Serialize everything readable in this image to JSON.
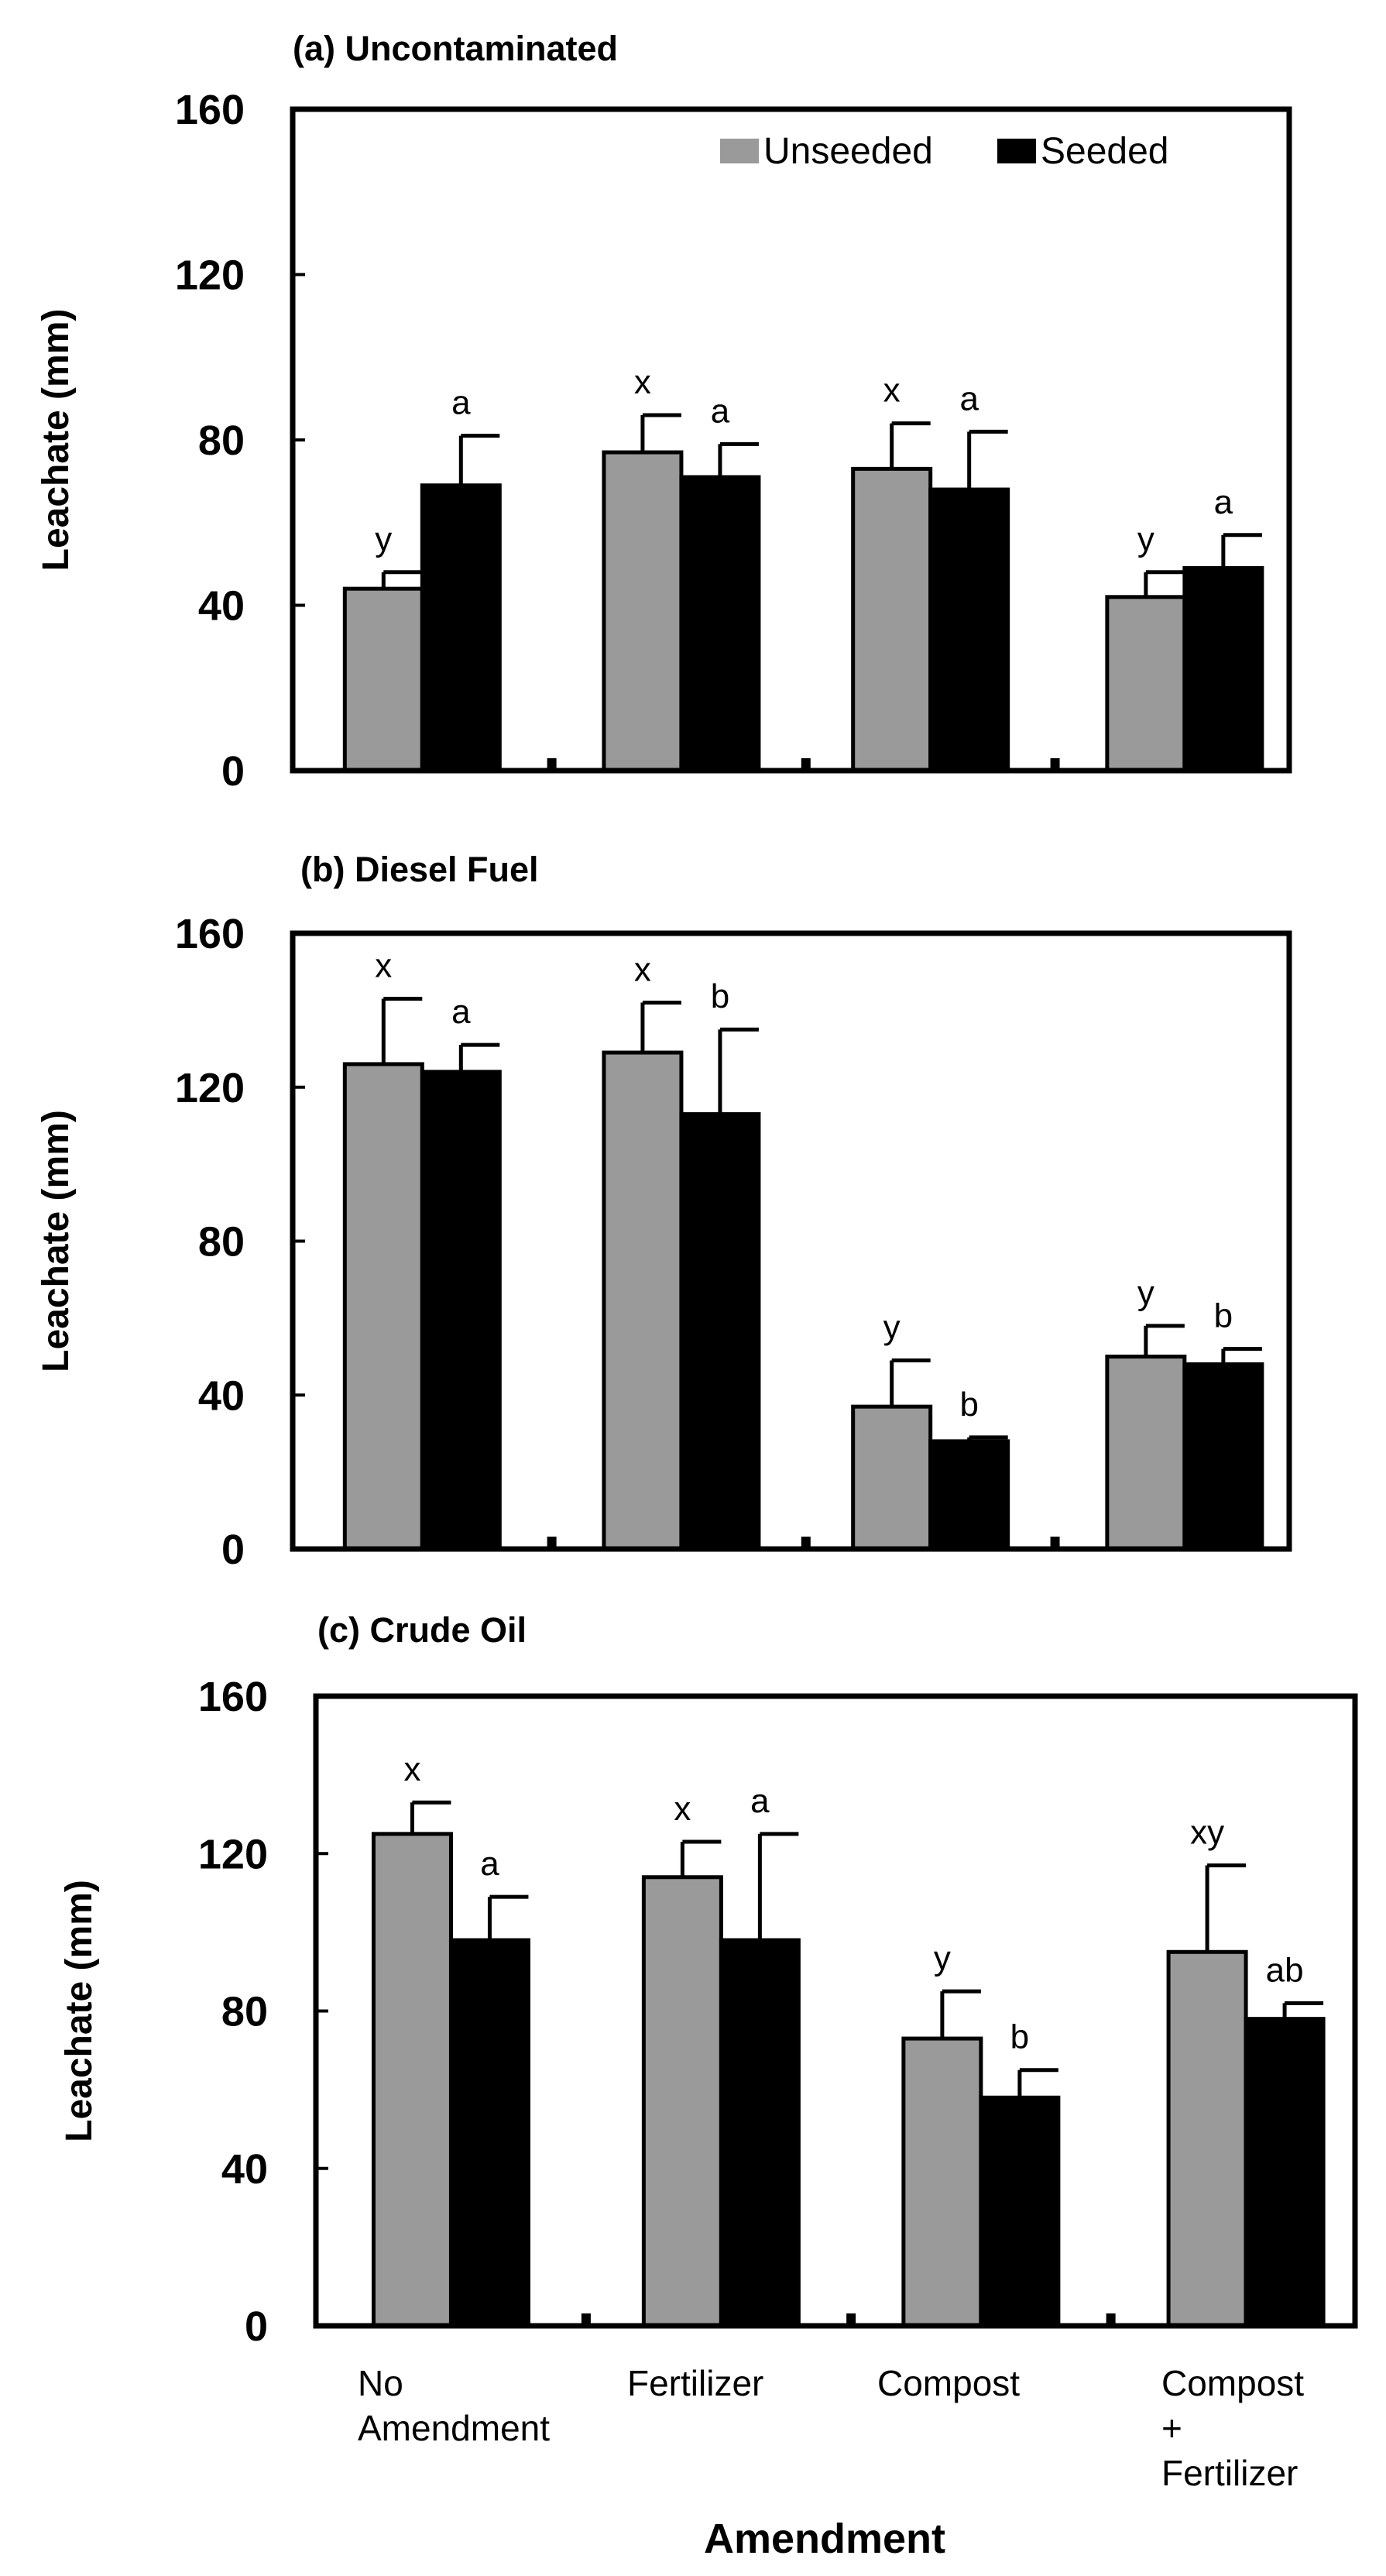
{
  "chart_data": [
    {
      "type": "bar",
      "title": "(a) Uncontaminated",
      "ylabel": "Leachate (mm)",
      "xlabel": "",
      "ylim": [
        0,
        160
      ],
      "yticks": [
        0,
        40,
        80,
        120,
        160
      ],
      "legend": {
        "placement": "top-right",
        "entries": [
          "Unseeded",
          "Seeded"
        ]
      },
      "categories": [
        "No Amendment",
        "Fertilizer",
        "Compost",
        "Compost + Fertilizer"
      ],
      "series": [
        {
          "name": "Unseeded",
          "color": "#9a9a9a",
          "values": [
            44,
            77,
            73,
            42
          ],
          "errors": [
            4,
            9,
            11,
            6
          ],
          "labels": [
            "y",
            "x",
            "x",
            "y"
          ]
        },
        {
          "name": "Seeded",
          "color": "#000000",
          "values": [
            69,
            71,
            68,
            49
          ],
          "errors": [
            12,
            8,
            14,
            8
          ],
          "labels": [
            "a",
            "a",
            "a",
            "a"
          ]
        }
      ]
    },
    {
      "type": "bar",
      "title": "(b) Diesel Fuel",
      "ylabel": "Leachate (mm)",
      "xlabel": "",
      "ylim": [
        0,
        160
      ],
      "yticks": [
        0,
        40,
        80,
        120,
        160
      ],
      "categories": [
        "No Amendment",
        "Fertilizer",
        "Compost",
        "Compost + Fertilizer"
      ],
      "series": [
        {
          "name": "Unseeded",
          "color": "#9a9a9a",
          "values": [
            126,
            129,
            37,
            50
          ],
          "errors": [
            17,
            13,
            12,
            8
          ],
          "labels": [
            "x",
            "x",
            "y",
            "y"
          ]
        },
        {
          "name": "Seeded",
          "color": "#000000",
          "values": [
            124,
            113,
            28,
            48
          ],
          "errors": [
            7,
            22,
            1,
            4
          ],
          "labels": [
            "a",
            "b",
            "b",
            "b"
          ]
        }
      ]
    },
    {
      "type": "bar",
      "title": "(c) Crude Oil",
      "ylabel": "Leachate (mm)",
      "xlabel": "Amendment",
      "ylim": [
        0,
        160
      ],
      "yticks": [
        0,
        40,
        80,
        120,
        160
      ],
      "categories": [
        "No Amendment",
        "Fertilizer",
        "Compost",
        "Compost + Fertilizer"
      ],
      "category_lines": [
        [
          "No",
          "Amendment"
        ],
        [
          "Fertilizer"
        ],
        [
          "Compost"
        ],
        [
          "Compost",
          "+",
          "Fertilizer"
        ]
      ],
      "series": [
        {
          "name": "Unseeded",
          "color": "#9a9a9a",
          "values": [
            125,
            114,
            73,
            95
          ],
          "errors": [
            8,
            9,
            12,
            22
          ],
          "labels": [
            "x",
            "x",
            "y",
            "xy"
          ]
        },
        {
          "name": "Seeded",
          "color": "#000000",
          "values": [
            98,
            98,
            58,
            78
          ],
          "errors": [
            11,
            27,
            7,
            4
          ],
          "labels": [
            "a",
            "a",
            "b",
            "ab"
          ]
        }
      ]
    }
  ]
}
